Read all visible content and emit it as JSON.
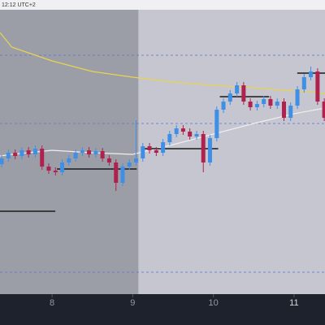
{
  "chart_data": {
    "type": "candlestick",
    "header_text": "12:12 UTC+2",
    "x": [
      7.375,
      7.458,
      7.542,
      7.625,
      7.708,
      7.792,
      7.875,
      7.958,
      8.042,
      8.125,
      8.208,
      8.292,
      8.375,
      8.458,
      8.542,
      8.625,
      8.708,
      8.792,
      8.875,
      8.958,
      9.042,
      9.125,
      9.208,
      9.292,
      9.375,
      9.458,
      9.542,
      9.625,
      9.708,
      9.792,
      9.875,
      9.958,
      10.042,
      10.125,
      10.208,
      10.292,
      10.375,
      10.458,
      10.542,
      10.625,
      10.708,
      10.792,
      10.875,
      10.958,
      11.042,
      11.125,
      11.208,
      11.292,
      11.375
    ],
    "open": [
      160,
      167,
      174,
      170,
      177,
      172,
      179,
      157,
      152,
      150,
      162,
      167,
      174,
      177,
      172,
      176,
      167,
      162,
      137,
      157,
      162,
      167,
      182,
      177,
      174,
      187,
      197,
      204,
      200,
      194,
      197,
      162,
      192,
      227,
      237,
      247,
      257,
      237,
      230,
      234,
      240,
      232,
      237,
      217,
      232,
      252,
      267,
      274,
      237
    ],
    "high": [
      171,
      178,
      178,
      181,
      181,
      183,
      183,
      161,
      156,
      166,
      171,
      178,
      181,
      181,
      180,
      180,
      171,
      166,
      161,
      166,
      214,
      186,
      186,
      181,
      191,
      201,
      208,
      208,
      204,
      201,
      201,
      196,
      231,
      241,
      251,
      261,
      261,
      241,
      238,
      244,
      244,
      241,
      241,
      236,
      256,
      271,
      280,
      278,
      241
    ],
    "low": [
      156,
      163,
      166,
      166,
      168,
      168,
      153,
      148,
      146,
      146,
      158,
      163,
      170,
      168,
      168,
      163,
      158,
      127,
      133,
      153,
      158,
      163,
      173,
      170,
      170,
      183,
      193,
      196,
      190,
      190,
      150,
      158,
      188,
      223,
      233,
      243,
      233,
      226,
      226,
      230,
      228,
      228,
      213,
      213,
      228,
      248,
      263,
      233,
      213
    ],
    "close": [
      167,
      174,
      170,
      177,
      172,
      179,
      157,
      152,
      150,
      162,
      167,
      174,
      177,
      172,
      176,
      167,
      162,
      137,
      157,
      162,
      167,
      182,
      177,
      174,
      187,
      197,
      204,
      200,
      194,
      197,
      162,
      192,
      227,
      237,
      247,
      257,
      237,
      230,
      234,
      240,
      232,
      237,
      217,
      232,
      252,
      267,
      274,
      237,
      217
    ],
    "up_color": "#3f8fe6",
    "down_color": "#b0214d",
    "lines": [
      {
        "color": "#e8d44d",
        "x": [
          7.354,
          7.5,
          8.0,
          8.5,
          9.0,
          9.5,
          10.0,
          10.5,
          11.0,
          11.384
        ],
        "values": [
          322,
          304,
          287,
          274,
          267,
          261,
          257,
          254,
          250,
          247
        ]
      },
      {
        "color": "#eeeeee",
        "x": [
          7.354,
          7.5,
          8.0,
          8.5,
          9.0,
          9.5,
          10.0,
          10.5,
          11.0,
          11.384
        ],
        "values": [
          170,
          172,
          177,
          174,
          172,
          184,
          197,
          210,
          222,
          229
        ]
      }
    ],
    "levels": [
      294,
      210,
      27
    ],
    "level_color": "#5b6fd6",
    "segments": [
      {
        "x": [
          7.354,
          8.04
        ],
        "value": 102
      },
      {
        "x": [
          8.06,
          9.05
        ],
        "value": 154
      },
      {
        "x": [
          9.12,
          10.06
        ],
        "value": 179
      },
      {
        "x": [
          10.08,
          10.69
        ],
        "value": 243
      },
      {
        "x": [
          11.04,
          11.384
        ],
        "value": 272
      }
    ],
    "shaded_region": [
      7.354,
      9.07
    ],
    "xlim": [
      7.354,
      11.384
    ],
    "ylim": [
      0,
      362
    ],
    "xticks": [
      8,
      9,
      10,
      11
    ]
  }
}
